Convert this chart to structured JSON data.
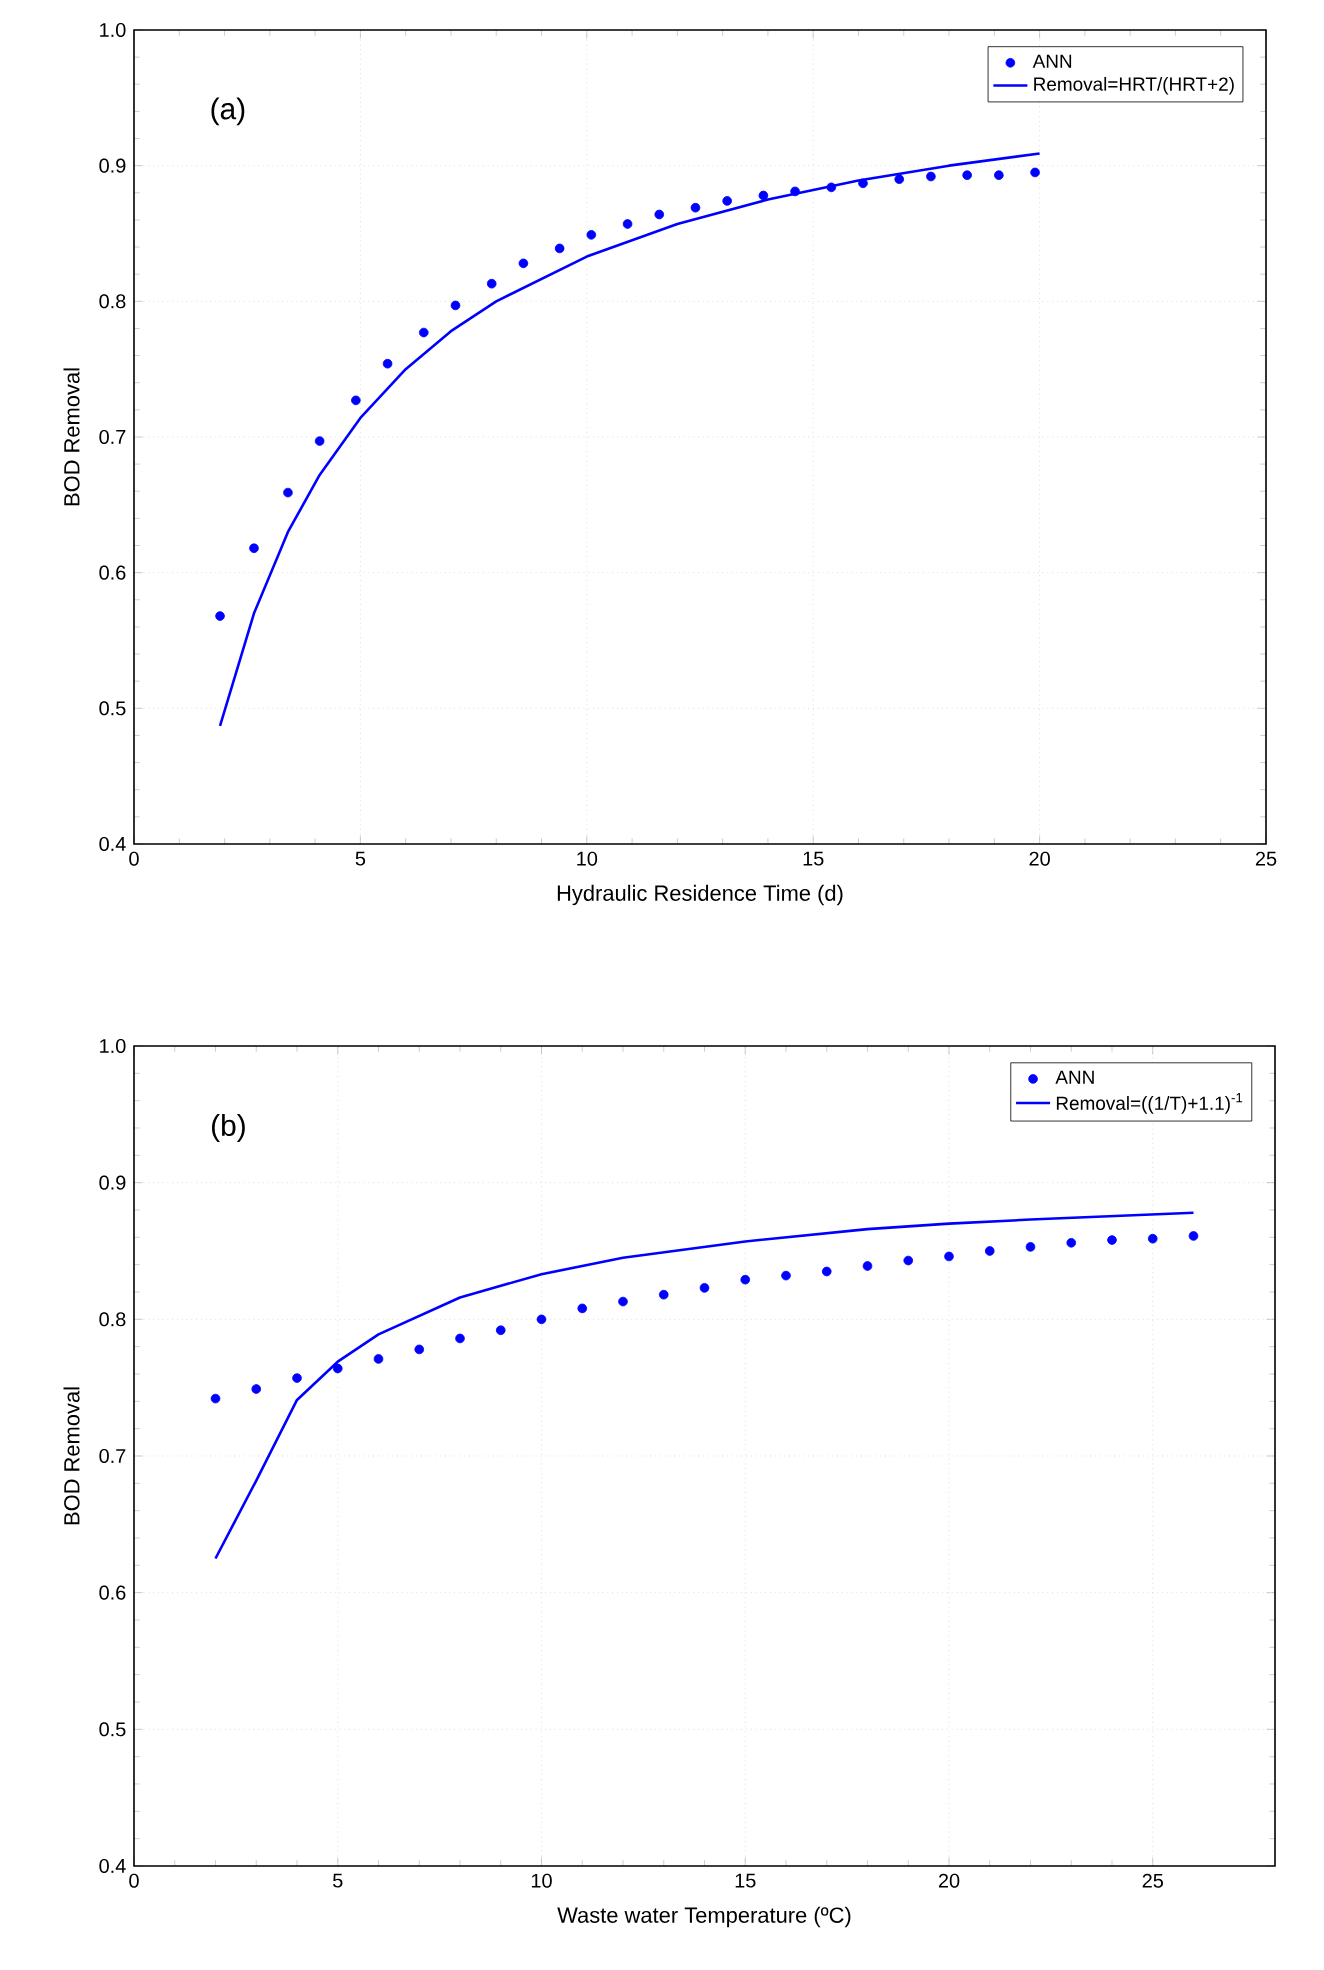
{
  "chart_data": [
    {
      "type": "scatter",
      "annotations": [
        "(a)"
      ],
      "xlabel": "Hydraulic Residence Time (d)",
      "ylabel": "BOD Removal",
      "xlim": [
        0,
        25
      ],
      "xticks": [
        0,
        5,
        10,
        15,
        20,
        25
      ],
      "ylim": [
        0.4,
        1.0
      ],
      "yticks": [
        {
          "value": 0.4,
          "label": "0.4"
        },
        {
          "value": 0.5,
          "label": "0.5"
        },
        {
          "value": 0.6,
          "label": "0.6"
        },
        {
          "value": 0.7,
          "label": "0.7"
        },
        {
          "value": 0.8,
          "label": "0.8"
        },
        {
          "value": 0.9,
          "label": "0.9"
        },
        {
          "value": 1.0,
          "label": "1.0"
        }
      ],
      "grid": true,
      "legend": "top right",
      "series": [
        {
          "name": "ANN",
          "marker": "circle",
          "color": "#0000ff",
          "x": [
            1.9,
            2.65,
            3.4,
            4.1,
            4.9,
            5.6,
            6.4,
            7.1,
            7.9,
            8.6,
            9.4,
            10.1,
            10.9,
            11.6,
            12.4,
            13.1,
            13.9,
            14.6,
            15.4,
            16.1,
            16.9,
            17.6,
            18.4,
            19.1,
            19.9
          ],
          "values": [
            0.568,
            0.618,
            0.659,
            0.697,
            0.727,
            0.754,
            0.777,
            0.797,
            0.813,
            0.828,
            0.839,
            0.849,
            0.857,
            0.864,
            0.869,
            0.874,
            0.878,
            0.881,
            0.884,
            0.887,
            0.89,
            0.892,
            0.893,
            0.893,
            0.895
          ]
        },
        {
          "name": "Removal=HRT/(HRT+2)",
          "type": "line",
          "marker": "none",
          "color": "#0000ff",
          "x": [
            1.9,
            2.65,
            3.4,
            4.1,
            5,
            6,
            7,
            8,
            10,
            12,
            14,
            16,
            18,
            20
          ],
          "values": [
            0.487,
            0.57,
            0.63,
            0.672,
            0.714,
            0.75,
            0.778,
            0.8,
            0.833,
            0.857,
            0.875,
            0.889,
            0.9,
            0.909
          ]
        }
      ]
    },
    {
      "type": "scatter",
      "annotations": [
        "(b)"
      ],
      "xlabel": "Waste water Temperature (ºC)",
      "ylabel": "BOD Removal",
      "xlim": [
        0,
        28
      ],
      "xticks": [
        0,
        5,
        10,
        15,
        20,
        25
      ],
      "ylim": [
        0.4,
        1.0
      ],
      "yticks": [
        {
          "value": 0.4,
          "label": "0.4"
        },
        {
          "value": 0.5,
          "label": "0.5"
        },
        {
          "value": 0.6,
          "label": "0.6"
        },
        {
          "value": 0.7,
          "label": "0.7"
        },
        {
          "value": 0.8,
          "label": "0.8"
        },
        {
          "value": 0.9,
          "label": "0.9"
        },
        {
          "value": 1.0,
          "label": "1.0"
        }
      ],
      "grid": true,
      "legend": "top right",
      "series": [
        {
          "name": "ANN",
          "marker": "circle",
          "color": "#0000ff",
          "x": [
            2,
            3,
            4,
            5,
            6,
            7,
            8,
            9,
            10,
            11,
            12,
            13,
            14,
            15,
            16,
            17,
            18,
            19,
            20,
            21,
            22,
            23,
            24,
            25,
            26
          ],
          "values": [
            0.742,
            0.749,
            0.757,
            0.764,
            0.771,
            0.778,
            0.786,
            0.792,
            0.8,
            0.808,
            0.813,
            0.818,
            0.823,
            0.829,
            0.832,
            0.835,
            0.839,
            0.843,
            0.846,
            0.85,
            0.853,
            0.856,
            0.858,
            0.859,
            0.861
          ]
        },
        {
          "name": "Removal=((1/T)+1.1)$^{-1}$",
          "type": "line",
          "marker": "none",
          "color": "#0000ff",
          "x": [
            2,
            3,
            4,
            5,
            6,
            8,
            10,
            12,
            15,
            18,
            20,
            22,
            26
          ],
          "values": [
            0.625,
            0.682,
            0.741,
            0.769,
            0.789,
            0.816,
            0.833,
            0.845,
            0.857,
            0.866,
            0.87,
            0.873,
            0.878
          ]
        }
      ]
    }
  ]
}
